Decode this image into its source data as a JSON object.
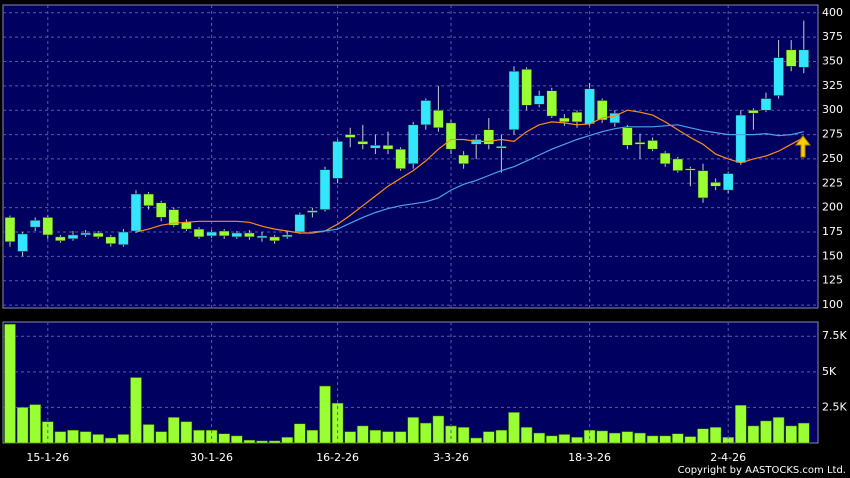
{
  "chart_data": [
    {
      "type": "candlestick",
      "ylim": [
        97,
        408
      ],
      "yticks": [
        100,
        125,
        150,
        175,
        200,
        225,
        250,
        275,
        300,
        325,
        350,
        375,
        400
      ],
      "grid": true,
      "up_color": "#33e6ff",
      "down_color": "#99ff33",
      "wick_color": "#cccccc",
      "open": [
        190,
        155,
        180,
        190,
        170,
        168,
        172,
        174,
        170,
        162,
        176,
        214,
        205,
        198,
        185,
        178,
        171,
        176,
        170,
        174,
        169,
        170,
        170,
        175,
        195,
        198,
        230,
        275,
        268,
        261,
        264,
        260,
        245,
        285,
        300,
        287,
        254,
        265,
        280,
        261,
        280,
        342,
        306,
        320,
        292,
        298,
        286,
        310,
        287,
        282,
        267,
        269,
        256,
        250,
        240,
        238,
        226,
        218,
        246,
        300,
        300,
        315,
        362,
        344
      ],
      "high": [
        192,
        175,
        190,
        192,
        172,
        176,
        177,
        176,
        172,
        178,
        218,
        216,
        207,
        200,
        188,
        180,
        177,
        178,
        176,
        177,
        175,
        172,
        176,
        195,
        200,
        242,
        270,
        282,
        285,
        275,
        278,
        262,
        288,
        312,
        325,
        290,
        258,
        275,
        292,
        275,
        345,
        344,
        320,
        323,
        296,
        300,
        328,
        312,
        300,
        285,
        276,
        272,
        258,
        252,
        242,
        245,
        230,
        237,
        300,
        302,
        318,
        372,
        372,
        392
      ],
      "low": [
        160,
        150,
        176,
        168,
        164,
        166,
        170,
        168,
        160,
        160,
        174,
        198,
        186,
        180,
        176,
        168,
        169,
        168,
        168,
        167,
        165,
        163,
        168,
        173,
        190,
        196,
        225,
        262,
        260,
        255,
        255,
        238,
        240,
        280,
        278,
        255,
        240,
        250,
        260,
        236,
        275,
        300,
        303,
        292,
        284,
        282,
        284,
        287,
        283,
        260,
        250,
        258,
        242,
        236,
        222,
        205,
        218,
        215,
        244,
        280,
        298,
        312,
        340,
        338
      ],
      "close": [
        165,
        173,
        187,
        172,
        166,
        172,
        174,
        170,
        163,
        175,
        214,
        202,
        190,
        182,
        178,
        170,
        175,
        171,
        174,
        170,
        171,
        166,
        172,
        193,
        197,
        239,
        268,
        272,
        265,
        264,
        260,
        240,
        285,
        310,
        282,
        260,
        245,
        270,
        265,
        263,
        340,
        305,
        315,
        294,
        288,
        288,
        322,
        290,
        297,
        264,
        265,
        260,
        245,
        238,
        239,
        210,
        222,
        235,
        295,
        297,
        312,
        354,
        345,
        362
      ],
      "lines": [
        {
          "color": "#ff8c1a",
          "values": [
            null,
            null,
            null,
            null,
            null,
            null,
            null,
            null,
            null,
            null,
            175,
            178,
            182,
            184,
            185,
            186,
            186,
            186,
            186,
            185,
            181,
            178,
            176,
            174,
            174,
            176,
            183,
            192,
            202,
            212,
            222,
            230,
            238,
            248,
            260,
            270,
            270,
            268,
            268,
            270,
            268,
            278,
            285,
            288,
            287,
            285,
            286,
            292,
            294,
            300,
            298,
            295,
            288,
            280,
            272,
            265,
            255,
            250,
            246,
            250,
            253,
            258,
            265,
            272
          ]
        },
        {
          "color": "#4aa3e8",
          "values": [
            null,
            null,
            null,
            null,
            null,
            null,
            null,
            null,
            null,
            null,
            null,
            null,
            null,
            null,
            null,
            null,
            null,
            null,
            null,
            null,
            null,
            null,
            null,
            null,
            175,
            176,
            178,
            184,
            190,
            195,
            199,
            202,
            204,
            206,
            210,
            218,
            224,
            228,
            233,
            238,
            242,
            248,
            254,
            260,
            265,
            270,
            274,
            278,
            281,
            283,
            283,
            283,
            284,
            285,
            282,
            279,
            277,
            275,
            275,
            275,
            276,
            274,
            275,
            278
          ]
        }
      ]
    },
    {
      "type": "bar",
      "ylim": [
        0,
        8500
      ],
      "yticks": [
        {
          "value": 2500,
          "label": "2.5K"
        },
        {
          "value": 5000,
          "label": "5K"
        },
        {
          "value": 7500,
          "label": "7.5K"
        }
      ],
      "grid": true,
      "color": "#99ff33",
      "categories": [
        null,
        null,
        null,
        "15-1-26",
        null,
        null,
        null,
        null,
        null,
        null,
        null,
        null,
        null,
        null,
        null,
        null,
        "30-1-26",
        null,
        null,
        null,
        null,
        null,
        null,
        null,
        null,
        null,
        "16-2-26",
        null,
        null,
        null,
        null,
        null,
        null,
        null,
        null,
        "3-3-26",
        null,
        null,
        null,
        null,
        null,
        null,
        null,
        null,
        null,
        null,
        "18-3-26",
        null,
        null,
        null,
        null,
        null,
        null,
        null,
        null,
        null,
        null,
        "2-4-26",
        null,
        null,
        null,
        null,
        null,
        null
      ],
      "values": [
        8350,
        2500,
        2700,
        1500,
        800,
        900,
        800,
        600,
        350,
        600,
        4600,
        1300,
        800,
        1800,
        1500,
        900,
        900,
        650,
        500,
        200,
        150,
        150,
        400,
        1350,
        900,
        4000,
        2800,
        800,
        1200,
        900,
        800,
        800,
        1800,
        1400,
        1900,
        1200,
        1100,
        350,
        800,
        900,
        2150,
        1100,
        700,
        500,
        600,
        400,
        900,
        850,
        700,
        800,
        700,
        500,
        500,
        650,
        450,
        1000,
        1100,
        400,
        2650,
        1200,
        1550,
        1800,
        1200,
        1400
      ]
    }
  ],
  "footer": "Copyright by AASTOCKS.com Ltd."
}
